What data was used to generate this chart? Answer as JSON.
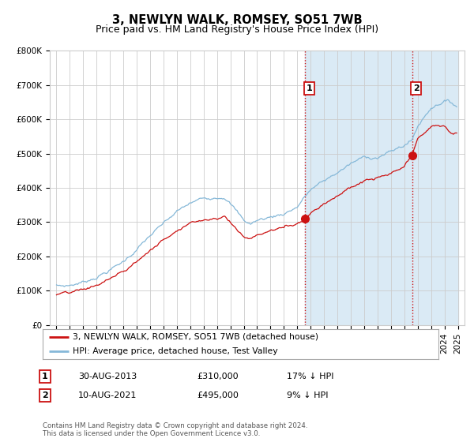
{
  "title": "3, NEWLYN WALK, ROMSEY, SO51 7WB",
  "subtitle": "Price paid vs. HM Land Registry's House Price Index (HPI)",
  "ylim": [
    0,
    800000
  ],
  "yticks": [
    0,
    100000,
    200000,
    300000,
    400000,
    500000,
    600000,
    700000,
    800000
  ],
  "ytick_labels": [
    "£0",
    "£100K",
    "£200K",
    "£300K",
    "£400K",
    "£500K",
    "£600K",
    "£700K",
    "£800K"
  ],
  "hpi_color": "#85b8d8",
  "price_color": "#cc1111",
  "marker1_price": 310000,
  "marker2_price": 495000,
  "legend_label_price": "3, NEWLYN WALK, ROMSEY, SO51 7WB (detached house)",
  "legend_label_hpi": "HPI: Average price, detached house, Test Valley",
  "table_row1": [
    "1",
    "30-AUG-2013",
    "£310,000",
    "17% ↓ HPI"
  ],
  "table_row2": [
    "2",
    "10-AUG-2021",
    "£495,000",
    "9% ↓ HPI"
  ],
  "footer": "Contains HM Land Registry data © Crown copyright and database right 2024.\nThis data is licensed under the Open Government Licence v3.0.",
  "bg_color": "#ffffff",
  "shade_color": "#daeaf5",
  "grid_color": "#cccccc",
  "title_fontsize": 10.5,
  "subtitle_fontsize": 9,
  "tick_fontsize": 7.5,
  "start_year": 1995,
  "end_year": 2025,
  "marker1_year": 2013,
  "marker1_month": 8,
  "marker2_year": 2021,
  "marker2_month": 8
}
